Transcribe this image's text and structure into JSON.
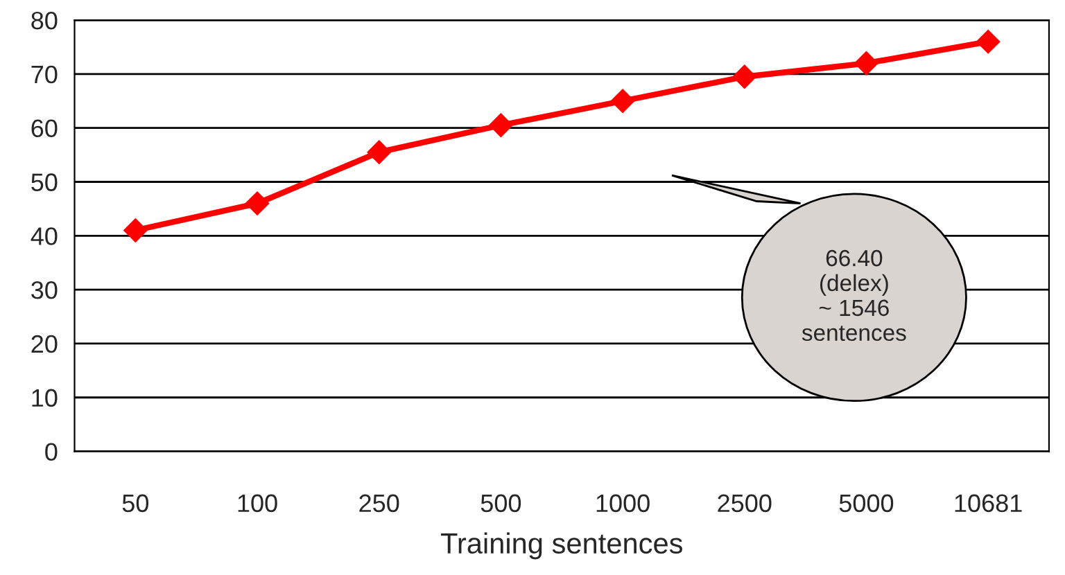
{
  "chart_data": {
    "type": "line",
    "xlabel": "Training sentences",
    "categories": [
      "50",
      "100",
      "250",
      "500",
      "1000",
      "2500",
      "5000",
      "10681"
    ],
    "series": [
      {
        "color": "#ff0000",
        "values": [
          41,
          46,
          55.5,
          60.5,
          65,
          69.5,
          72,
          76
        ]
      }
    ],
    "ylim": [
      0,
      80
    ],
    "yticks": [
      0,
      10,
      20,
      30,
      40,
      50,
      60,
      70,
      80
    ],
    "grid": "y",
    "marker": "diamond",
    "line_style": "solid",
    "legend": false,
    "annotations": [
      "66.40\n(delex)\n~ 1546\nsentences"
    ]
  }
}
